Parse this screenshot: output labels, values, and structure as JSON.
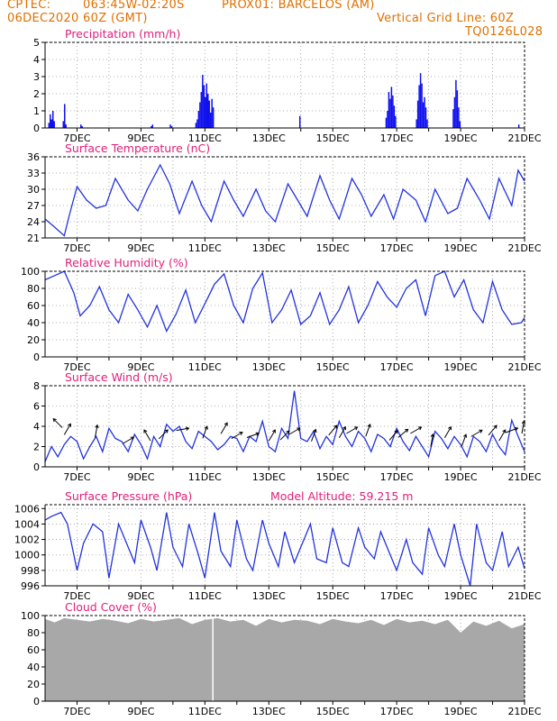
{
  "header": {
    "line1_left": "CPTEC:",
    "line1_coords": "063:45W-02:20S",
    "line1_station": "PROX01: BARCELOS (AM)",
    "line2_date": "06DEC2020 60Z (GMT)",
    "line2_grid": "Vertical Grid Line: 60Z",
    "line3_code": "TQ0126L028"
  },
  "colors": {
    "header": "#e07000",
    "title": "#e0207a",
    "line": "#2233dd",
    "bar": "#1010ee",
    "cloud": "#a8a8a8",
    "wind_arrow": "#000000"
  },
  "chart_data": [
    {
      "id": "precip",
      "type": "bar",
      "title": "Precipitation (mm/h)",
      "x_tick_labels": [
        "7DEC",
        "9DEC",
        "11DEC",
        "13DEC",
        "15DEC",
        "17DEC",
        "19DEC",
        "21DEC"
      ],
      "y_ticks": [
        0,
        1,
        2,
        3,
        4,
        5
      ],
      "ylim": [
        0,
        5
      ],
      "grid": true,
      "clusters": [
        {
          "day": 6.1,
          "peaks": [
            0.3,
            0.8,
            0.5,
            1.0,
            0.4
          ]
        },
        {
          "day": 6.55,
          "peaks": [
            0.4,
            1.4,
            0.2
          ]
        },
        {
          "day": 7.1,
          "peaks": [
            0.2,
            0.1
          ]
        },
        {
          "day": 9.3,
          "peaks": [
            0.1,
            0.2
          ]
        },
        {
          "day": 9.9,
          "peaks": [
            0.2,
            0.1
          ]
        },
        {
          "day": 10.7,
          "peaks": [
            0.3,
            0.5,
            1.0,
            1.5,
            2.1,
            3.1,
            2.5,
            1.8,
            2.6,
            2.0,
            1.6,
            0.9,
            1.7,
            1.2
          ]
        },
        {
          "day": 13.95,
          "peaks": [
            0.7
          ]
        },
        {
          "day": 16.65,
          "peaks": [
            0.6,
            1.0,
            2.1,
            1.7,
            2.4,
            1.9,
            1.3,
            0.7
          ]
        },
        {
          "day": 17.6,
          "peaks": [
            0.5,
            1.6,
            2.5,
            3.2,
            2.6,
            1.5,
            1.8,
            1.2,
            0.5
          ]
        },
        {
          "day": 18.75,
          "peaks": [
            1.1,
            1.8,
            2.8,
            2.2,
            1.2,
            0.4
          ]
        },
        {
          "day": 20.8,
          "peaks": [
            0.2
          ]
        }
      ]
    },
    {
      "id": "temp",
      "type": "line",
      "title": "Surface Temperature (nC)",
      "x_tick_labels": [
        "7DEC",
        "9DEC",
        "11DEC",
        "13DEC",
        "15DEC",
        "17DEC",
        "19DEC",
        "21DEC"
      ],
      "y_ticks": [
        21,
        24,
        27,
        30,
        33,
        36
      ],
      "ylim": [
        21,
        36
      ],
      "grid": true,
      "base": 27.0,
      "amp": 3.2,
      "phase": 0.15,
      "wobble": 1.0,
      "x": [
        6.0,
        6.3,
        6.6,
        6.75,
        7.0,
        7.3,
        7.6,
        7.9,
        8.2,
        8.6,
        8.9,
        9.2,
        9.6,
        9.9,
        10.2,
        10.6,
        10.9,
        11.2,
        11.6,
        11.9,
        12.2,
        12.6,
        12.9,
        13.2,
        13.6,
        13.9,
        14.2,
        14.6,
        14.9,
        15.2,
        15.6,
        15.9,
        16.2,
        16.6,
        16.9,
        17.2,
        17.6,
        17.9,
        18.2,
        18.6,
        18.9,
        19.2,
        19.6,
        19.9,
        20.2,
        20.6,
        20.8,
        21.0
      ],
      "y": [
        24.5,
        23.0,
        21.4,
        25.0,
        30.5,
        28.0,
        26.5,
        27.0,
        32.0,
        28.0,
        26.0,
        30.0,
        34.5,
        31.0,
        25.5,
        31.5,
        27.0,
        24.0,
        31.5,
        28.0,
        25.0,
        30.0,
        26.0,
        24.0,
        31.0,
        28.0,
        25.0,
        32.5,
        28.0,
        24.5,
        32.0,
        29.0,
        25.0,
        29.0,
        24.5,
        30.0,
        28.0,
        24.0,
        30.0,
        25.5,
        26.5,
        32.0,
        28.0,
        24.5,
        32.0,
        27.0,
        33.5,
        31.5
      ]
    },
    {
      "id": "rh",
      "type": "line",
      "title": "Relative Humidity (%)",
      "x_tick_labels": [
        "7DEC",
        "9DEC",
        "11DEC",
        "13DEC",
        "15DEC",
        "17DEC",
        "19DEC",
        "21DEC"
      ],
      "y_ticks": [
        0,
        20,
        40,
        60,
        80,
        100
      ],
      "ylim": [
        0,
        100
      ],
      "grid": true,
      "x": [
        6.0,
        6.3,
        6.6,
        6.9,
        7.1,
        7.4,
        7.7,
        8.0,
        8.3,
        8.6,
        8.9,
        9.2,
        9.5,
        9.8,
        10.1,
        10.4,
        10.7,
        11.0,
        11.3,
        11.6,
        11.9,
        12.2,
        12.5,
        12.8,
        13.1,
        13.4,
        13.7,
        14.0,
        14.3,
        14.6,
        14.9,
        15.2,
        15.5,
        15.8,
        16.1,
        16.4,
        16.7,
        17.0,
        17.3,
        17.6,
        17.9,
        18.2,
        18.5,
        18.8,
        19.1,
        19.4,
        19.7,
        20.0,
        20.3,
        20.6,
        20.9,
        21.0
      ],
      "y": [
        90,
        95,
        100,
        75,
        48,
        60,
        82,
        55,
        40,
        73,
        55,
        35,
        60,
        30,
        50,
        78,
        40,
        62,
        85,
        97,
        60,
        40,
        80,
        98,
        40,
        55,
        78,
        38,
        48,
        75,
        38,
        55,
        82,
        40,
        60,
        88,
        70,
        58,
        80,
        90,
        48,
        95,
        100,
        70,
        90,
        55,
        40,
        88,
        55,
        38,
        40,
        46
      ]
    },
    {
      "id": "wind",
      "type": "line",
      "title": "Surface Wind (m/s)",
      "x_tick_labels": [
        "7DEC",
        "9DEC",
        "11DEC",
        "13DEC",
        "15DEC",
        "17DEC",
        "19DEC",
        "21DEC"
      ],
      "y_ticks": [
        0,
        2,
        4,
        6,
        8
      ],
      "ylim": [
        0,
        8
      ],
      "grid": true,
      "x": [
        6.0,
        6.2,
        6.4,
        6.6,
        6.8,
        7.0,
        7.2,
        7.4,
        7.6,
        7.8,
        8.0,
        8.2,
        8.4,
        8.6,
        8.8,
        9.0,
        9.2,
        9.4,
        9.6,
        9.8,
        10.0,
        10.2,
        10.4,
        10.6,
        10.8,
        11.0,
        11.2,
        11.4,
        11.6,
        11.8,
        12.0,
        12.2,
        12.4,
        12.6,
        12.8,
        13.0,
        13.2,
        13.4,
        13.6,
        13.8,
        14.0,
        14.2,
        14.4,
        14.6,
        14.8,
        15.0,
        15.2,
        15.4,
        15.6,
        15.8,
        16.0,
        16.2,
        16.4,
        16.6,
        16.8,
        17.0,
        17.2,
        17.4,
        17.6,
        17.8,
        18.0,
        18.2,
        18.4,
        18.6,
        18.8,
        19.0,
        19.2,
        19.4,
        19.6,
        19.8,
        20.0,
        20.2,
        20.4,
        20.6,
        20.8,
        21.0
      ],
      "y": [
        0.5,
        2.0,
        1.0,
        2.2,
        3.0,
        2.5,
        0.8,
        2.0,
        3.0,
        1.5,
        3.8,
        2.8,
        2.5,
        1.5,
        3.2,
        2.2,
        0.8,
        3.0,
        2.0,
        4.2,
        3.5,
        4.0,
        2.5,
        1.8,
        3.5,
        3.0,
        2.5,
        1.7,
        2.2,
        3.0,
        2.8,
        1.5,
        3.0,
        2.5,
        4.5,
        2.0,
        1.5,
        3.8,
        2.8,
        7.5,
        2.8,
        2.5,
        3.5,
        1.8,
        3.0,
        2.2,
        4.5,
        3.0,
        2.0,
        3.5,
        2.8,
        1.5,
        3.2,
        2.8,
        2.0,
        3.8,
        2.5,
        1.6,
        3.0,
        2.0,
        1.0,
        3.5,
        2.8,
        1.8,
        3.0,
        2.2,
        1.0,
        3.0,
        2.5,
        1.5,
        3.2,
        2.0,
        1.2,
        4.6,
        3.0,
        1.5
      ],
      "arrows_day": [
        6.4,
        6.7,
        7.6,
        8.6,
        9.2,
        9.7,
        10.3,
        11.0,
        11.6,
        12.0,
        12.5,
        13.1,
        13.5,
        13.8,
        14.4,
        15.0,
        15.3,
        15.6,
        16.1,
        16.9,
        17.2,
        17.6,
        18.1,
        18.6,
        19.1,
        19.5,
        20.0,
        20.3,
        20.6,
        20.95
      ],
      "arrows_dir": [
        315,
        30,
        10,
        60,
        330,
        45,
        80,
        20,
        30,
        60,
        70,
        30,
        45,
        60,
        20,
        40,
        30,
        60,
        20,
        40,
        50,
        60,
        10,
        30,
        20,
        60,
        40,
        30,
        70,
        10
      ],
      "arrows_y": [
        4.3,
        3.7,
        3.5,
        2.6,
        3.1,
        3.2,
        3.7,
        3.4,
        3.8,
        3.1,
        3.1,
        3.1,
        3.1,
        3.5,
        3.1,
        3.6,
        3.4,
        3.6,
        3.6,
        3.1,
        3.3,
        3.6,
        2.6,
        3.4,
        2.6,
        3.3,
        3.6,
        3.1,
        3.6,
        3.9
      ]
    },
    {
      "id": "pressure",
      "type": "line",
      "title": "Surface Pressure (hPa)",
      "subtitle": "Model Altitude: 59.215 m",
      "x_tick_labels": [
        "7DEC",
        "9DEC",
        "11DEC",
        "13DEC",
        "15DEC",
        "17DEC",
        "19DEC",
        "21DEC"
      ],
      "y_ticks": [
        996,
        998,
        1000,
        1002,
        1004,
        1006
      ],
      "ylim": [
        996,
        1006.5
      ],
      "grid": true,
      "x": [
        6.0,
        6.2,
        6.5,
        6.7,
        7.0,
        7.2,
        7.5,
        7.8,
        8.0,
        8.3,
        8.5,
        8.8,
        9.0,
        9.3,
        9.5,
        9.8,
        10.0,
        10.3,
        10.5,
        10.8,
        11.0,
        11.3,
        11.5,
        11.8,
        12.0,
        12.3,
        12.5,
        12.8,
        13.0,
        13.3,
        13.5,
        13.8,
        14.0,
        14.3,
        14.5,
        14.8,
        15.0,
        15.3,
        15.5,
        15.8,
        16.0,
        16.3,
        16.5,
        16.8,
        17.0,
        17.3,
        17.5,
        17.8,
        18.0,
        18.3,
        18.5,
        18.8,
        19.0,
        19.3,
        19.5,
        19.8,
        20.0,
        20.3,
        20.5,
        20.8,
        21.0
      ],
      "y": [
        1004.5,
        1005.0,
        1005.5,
        1004.0,
        998.0,
        1001.5,
        1004.0,
        1003.0,
        997.0,
        1004.0,
        1002.0,
        999.0,
        1004.5,
        1001.0,
        998.0,
        1005.5,
        1001.0,
        998.5,
        1004.0,
        1000.0,
        997.0,
        1005.5,
        1000.5,
        998.5,
        1004.5,
        999.5,
        998.0,
        1004.5,
        1001.5,
        998.5,
        1003.0,
        999.0,
        1001.0,
        1004.0,
        999.5,
        999.0,
        1003.5,
        999.0,
        998.5,
        1003.5,
        1001.0,
        999.5,
        1003.0,
        1000.0,
        998.0,
        1002.0,
        999.0,
        997.5,
        1003.5,
        1000.0,
        998.5,
        1004.0,
        1000.0,
        996.0,
        1004.0,
        999.0,
        998.0,
        1003.0,
        998.5,
        1001.0,
        998.2
      ]
    },
    {
      "id": "cloud",
      "type": "area",
      "title": "Cloud Cover (%)",
      "x_tick_labels": [
        "7DEC",
        "9DEC",
        "11DEC",
        "13DEC",
        "15DEC",
        "17DEC",
        "19DEC",
        "21DEC"
      ],
      "y_ticks": [
        0,
        20,
        40,
        60,
        80,
        100
      ],
      "ylim": [
        0,
        100
      ],
      "grid": true,
      "x": [
        6.0,
        6.3,
        6.6,
        7.0,
        7.4,
        7.8,
        8.2,
        8.6,
        9.0,
        9.4,
        9.8,
        10.2,
        10.6,
        11.0,
        11.4,
        11.8,
        12.2,
        12.6,
        13.0,
        13.4,
        13.8,
        14.2,
        14.6,
        15.0,
        15.4,
        15.8,
        16.2,
        16.6,
        17.0,
        17.4,
        17.8,
        18.2,
        18.6,
        19.0,
        19.4,
        19.8,
        20.2,
        20.6,
        21.0
      ],
      "y": [
        96,
        92,
        97,
        95,
        93,
        96,
        94,
        91,
        96,
        93,
        95,
        97,
        90,
        95,
        97,
        93,
        95,
        88,
        96,
        92,
        95,
        94,
        90,
        96,
        93,
        91,
        95,
        89,
        96,
        92,
        94,
        90,
        95,
        80,
        93,
        88,
        94,
        85,
        90
      ]
    }
  ]
}
